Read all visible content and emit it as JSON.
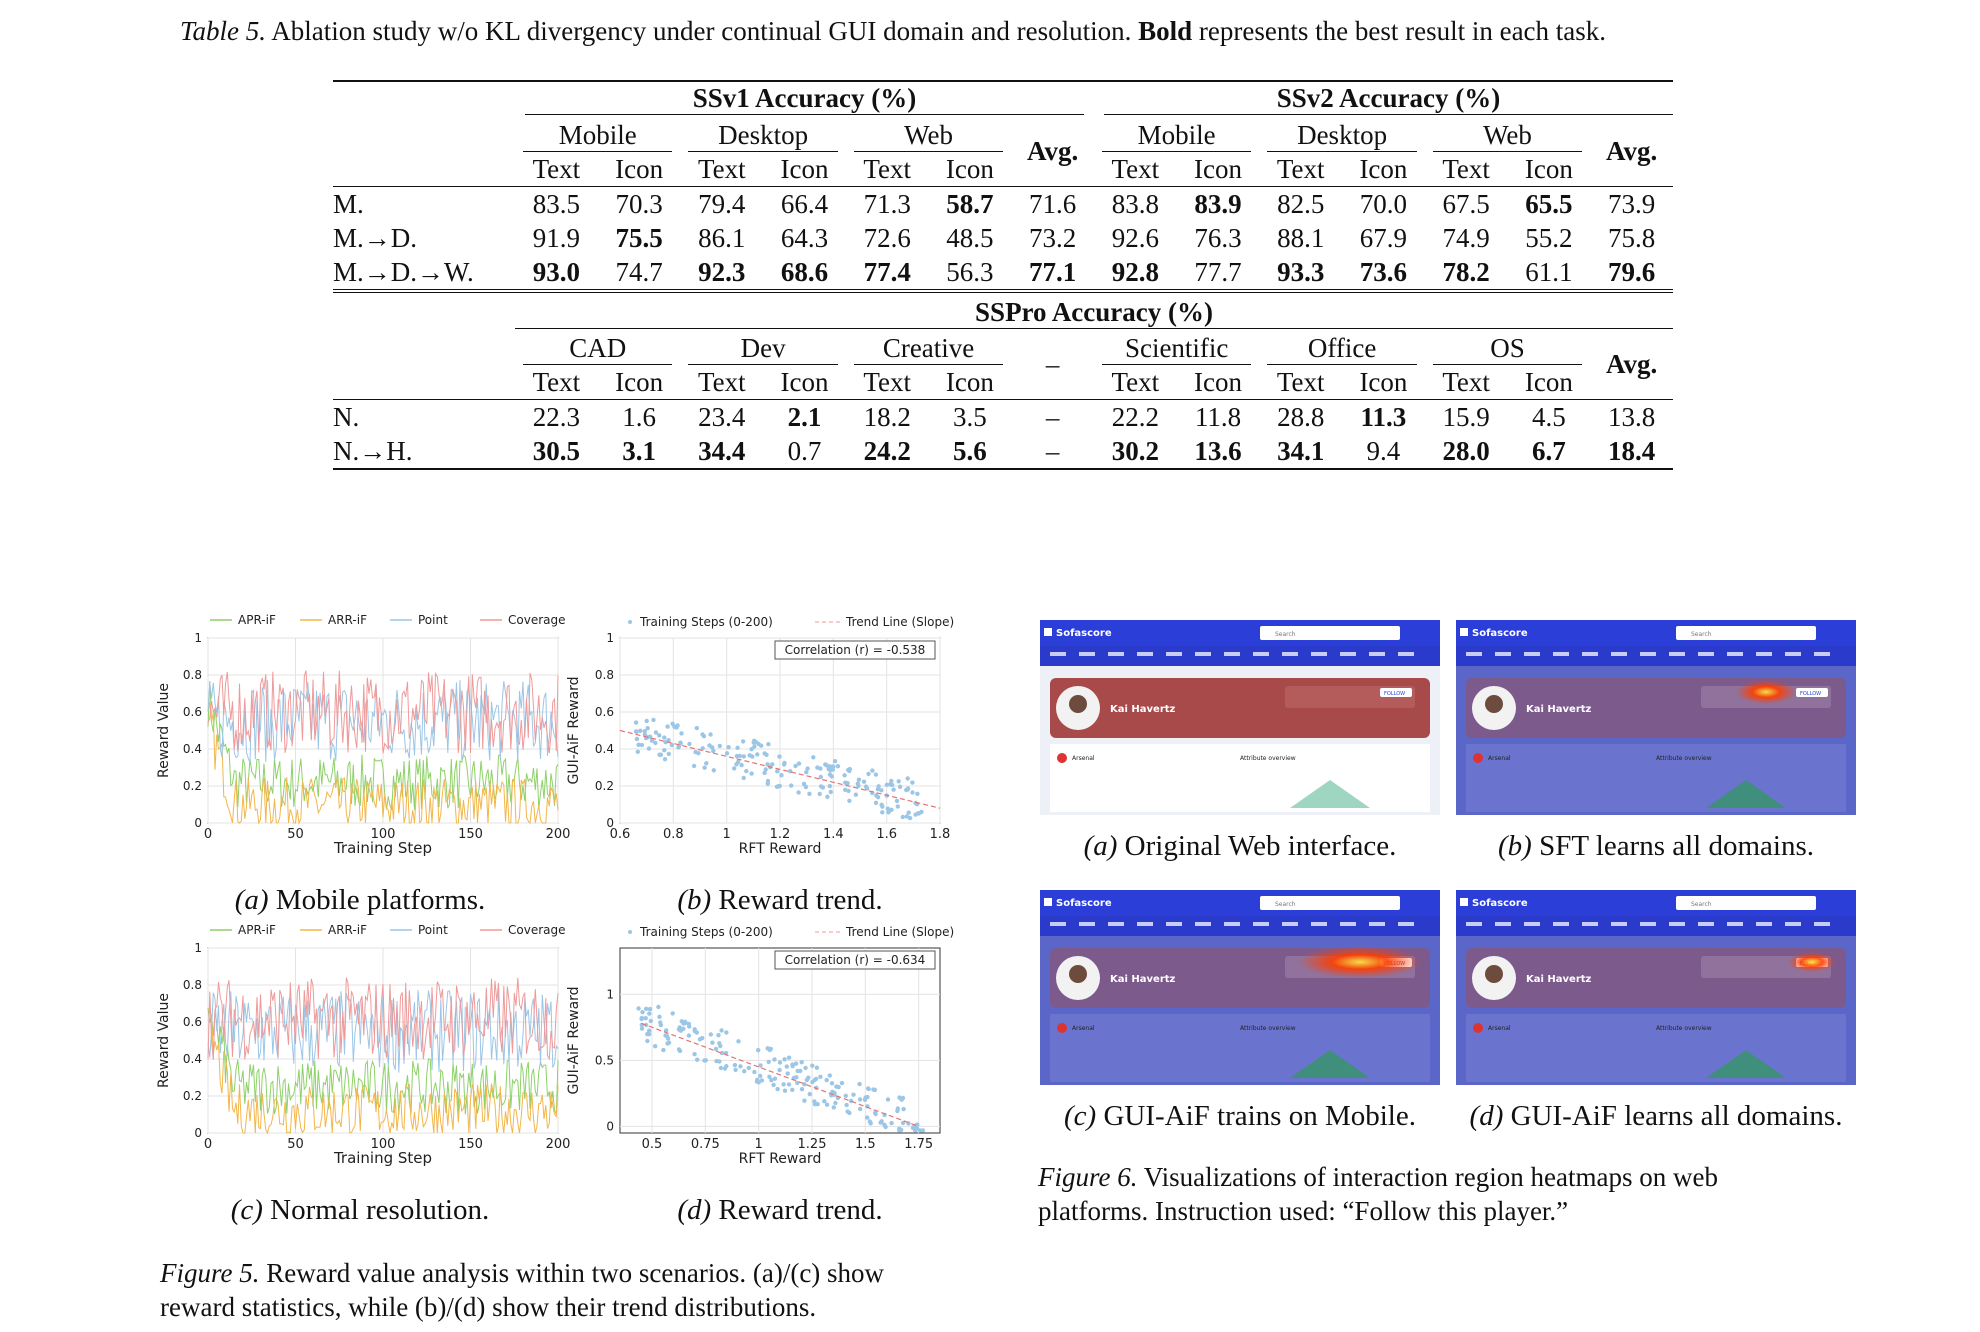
{
  "table5": {
    "caption_label": "Table 5.",
    "caption_text": "Ablation study w/o KL divergency under continual GUI domain and resolution.",
    "caption_bold": "Bold",
    "caption_tail": "represents the best result in each task.",
    "ssv1_header": "SSv1 Accuracy (%)",
    "ssv2_header": "SSv2 Accuracy (%)",
    "sspro_header": "SSPro Accuracy (%)",
    "group_mobile": "Mobile",
    "group_desktop": "Desktop",
    "group_web": "Web",
    "avg": "Avg.",
    "text": "Text",
    "icon": "Icon",
    "dash": "–",
    "pro_groups": [
      "CAD",
      "Dev",
      "Creative",
      "Scientific",
      "Office",
      "OS"
    ],
    "rows_top": [
      {
        "label": "M.",
        "cells": [
          "83.5",
          "70.3",
          "79.4",
          "66.4",
          "71.3",
          "58.7",
          "71.6",
          "83.8",
          "83.9",
          "82.5",
          "70.0",
          "67.5",
          "65.5",
          "73.9"
        ],
        "bold": [
          5,
          8,
          12
        ]
      },
      {
        "label": "M.→D.",
        "cells": [
          "91.9",
          "75.5",
          "86.1",
          "64.3",
          "72.6",
          "48.5",
          "73.2",
          "92.6",
          "76.3",
          "88.1",
          "67.9",
          "74.9",
          "55.2",
          "75.8"
        ],
        "bold": [
          1
        ]
      },
      {
        "label": "M.→D.→W.",
        "cells": [
          "93.0",
          "74.7",
          "92.3",
          "68.6",
          "77.4",
          "56.3",
          "77.1",
          "92.8",
          "77.7",
          "93.3",
          "73.6",
          "78.2",
          "61.1",
          "79.6"
        ],
        "bold": [
          0,
          2,
          3,
          4,
          6,
          7,
          9,
          10,
          11,
          13
        ]
      }
    ],
    "rows_bottom": [
      {
        "label": "N.",
        "cells": [
          "22.3",
          "1.6",
          "23.4",
          "2.1",
          "18.2",
          "3.5",
          "–",
          "22.2",
          "11.8",
          "28.8",
          "11.3",
          "15.9",
          "4.5",
          "13.8"
        ],
        "bold": [
          3,
          10
        ]
      },
      {
        "label": "N.→H.",
        "cells": [
          "30.5",
          "3.1",
          "34.4",
          "0.7",
          "24.2",
          "5.6",
          "–",
          "30.2",
          "13.6",
          "34.1",
          "9.4",
          "28.0",
          "6.7",
          "18.4"
        ],
        "bold": [
          0,
          1,
          2,
          4,
          5,
          7,
          8,
          9,
          11,
          12,
          13
        ]
      }
    ]
  },
  "fig5": {
    "sub_a_label": "(a)",
    "sub_a_text": "Mobile platforms.",
    "sub_b_label": "(b)",
    "sub_b_text": "Reward trend.",
    "sub_c_label": "(c)",
    "sub_c_text": "Normal resolution.",
    "sub_d_label": "(d)",
    "sub_d_text": "Reward trend.",
    "caption_label": "Figure 5.",
    "caption_line1": "Reward value analysis within two scenarios. (a)/(c) show",
    "caption_line2": "reward statistics, while (b)/(d) show their trend distributions.",
    "legend": [
      "APR-iF",
      "ARR-iF",
      "Point",
      "Coverage"
    ],
    "scatter_legend_a": "Training Steps (0-200)",
    "scatter_legend_b": "Trend Line (Slope)",
    "corr_b": "Correlation (r) = -0.538",
    "corr_d": "Correlation (r) = -0.634",
    "line_xlabel": "Training Step",
    "line_ylabel": "Reward Value",
    "scatter_xlabel": "RFT Reward",
    "scatter_ylabel": "GUI-AiF Reward"
  },
  "fig6": {
    "sub_a_label": "(a)",
    "sub_a_text": "Original Web interface.",
    "sub_b_label": "(b)",
    "sub_b_text": "SFT learns all domains.",
    "sub_c_label": "(c)",
    "sub_c_text": "GUI-AiF trains on Mobile.",
    "sub_d_label": "(d)",
    "sub_d_text": "GUI-AiF learns all domains.",
    "caption_label": "Figure 6.",
    "caption_line1": "Visualizations of interaction region heatmaps on web",
    "caption_line2": "platforms. Instruction used: “Follow this player.”",
    "shot_brand": "Sofascore",
    "shot_search": "Search",
    "shot_player": "Kai Havertz",
    "shot_team": "Arsenal",
    "shot_follow": "FOLLOW",
    "shot_attr": "Attribute overview"
  },
  "chart_data": [
    {
      "type": "line",
      "title": "(a) Mobile platforms",
      "xlabel": "Training Step",
      "ylabel": "Reward Value",
      "xlim": [
        0,
        200
      ],
      "ylim": [
        0,
        1.0
      ],
      "x_ticks": [
        0,
        50,
        100,
        150,
        200
      ],
      "y_ticks": [
        0.0,
        0.2,
        0.4,
        0.6,
        0.8,
        1.0
      ],
      "series": [
        {
          "name": "APR-iF",
          "color": "#8ed16a",
          "mean": 0.22
        },
        {
          "name": "ARR-iF",
          "color": "#f3b64a",
          "mean": 0.1
        },
        {
          "name": "Point",
          "color": "#9cc6e6",
          "mean": 0.55
        },
        {
          "name": "Coverage",
          "color": "#ef9a9a",
          "mean": 0.6
        }
      ]
    },
    {
      "type": "scatter",
      "title": "(b) Reward trend",
      "xlabel": "RFT Reward",
      "ylabel": "GUI-AiF Reward",
      "xlim": [
        0.6,
        1.8
      ],
      "ylim": [
        0.0,
        1.0
      ],
      "x_ticks": [
        0.6,
        0.8,
        1.0,
        1.2,
        1.4,
        1.6,
        1.8
      ],
      "y_ticks": [
        0.0,
        0.2,
        0.4,
        0.6,
        0.8,
        1.0
      ],
      "correlation": -0.538,
      "trend": {
        "x": [
          0.6,
          1.8
        ],
        "y": [
          0.5,
          0.08
        ]
      }
    },
    {
      "type": "line",
      "title": "(c) Normal resolution",
      "xlabel": "Training Step",
      "ylabel": "Reward Value",
      "xlim": [
        0,
        200
      ],
      "ylim": [
        0,
        1.0
      ],
      "x_ticks": [
        0,
        50,
        100,
        150,
        200
      ],
      "y_ticks": [
        0.0,
        0.2,
        0.4,
        0.6,
        0.8,
        1.0
      ],
      "series": [
        {
          "name": "APR-iF",
          "color": "#8ed16a",
          "mean": 0.25
        },
        {
          "name": "ARR-iF",
          "color": "#f3b64a",
          "mean": 0.12
        },
        {
          "name": "Point",
          "color": "#9cc6e6",
          "mean": 0.55
        },
        {
          "name": "Coverage",
          "color": "#ef9a9a",
          "mean": 0.62
        }
      ]
    },
    {
      "type": "scatter",
      "title": "(d) Reward trend",
      "xlabel": "RFT Reward",
      "ylabel": "GUI-AiF Reward",
      "xlim": [
        0.35,
        1.85
      ],
      "ylim": [
        -0.05,
        1.35
      ],
      "x_ticks": [
        0.5,
        0.75,
        1.0,
        1.25,
        1.5,
        1.75
      ],
      "y_ticks": [
        0.0,
        0.5,
        1.0
      ],
      "correlation": -0.634,
      "trend": {
        "x": [
          0.45,
          1.75
        ],
        "y": [
          0.78,
          0.0
        ]
      }
    }
  ]
}
